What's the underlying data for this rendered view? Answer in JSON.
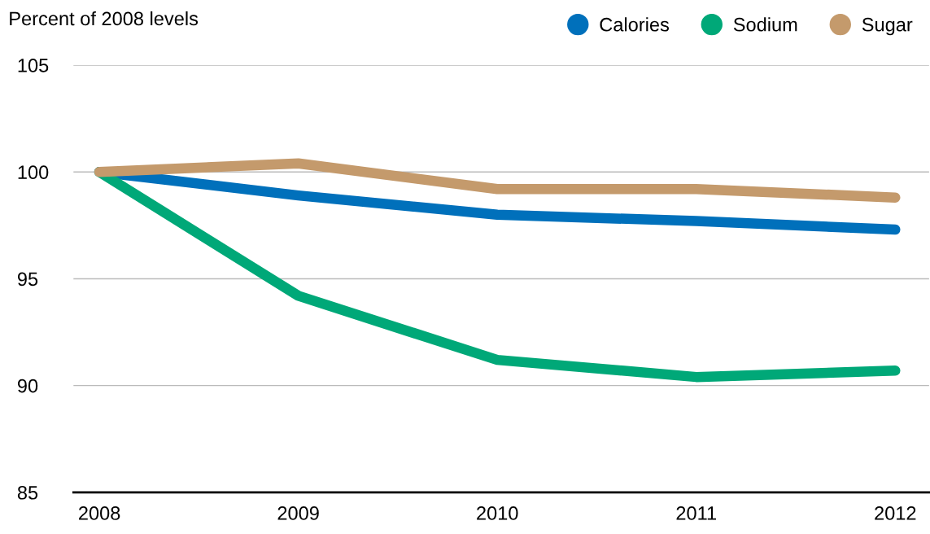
{
  "chart_data": {
    "type": "line",
    "ylabel": "Percent of 2008 levels",
    "categories": [
      "2008",
      "2009",
      "2010",
      "2011",
      "2012"
    ],
    "series": [
      {
        "name": "Calories",
        "color": "#0070bb",
        "values": [
          100,
          98.9,
          98.0,
          97.7,
          97.3
        ]
      },
      {
        "name": "Sodium",
        "color": "#00a878",
        "values": [
          100,
          94.2,
          91.2,
          90.4,
          90.7
        ]
      },
      {
        "name": "Sugar",
        "color": "#c49a6c",
        "values": [
          100,
          100.4,
          99.2,
          99.2,
          98.8
        ]
      }
    ],
    "ylim": [
      85,
      105
    ],
    "yticks": [
      85,
      90,
      95,
      100,
      105
    ],
    "grid": "y",
    "legend": "top right"
  }
}
